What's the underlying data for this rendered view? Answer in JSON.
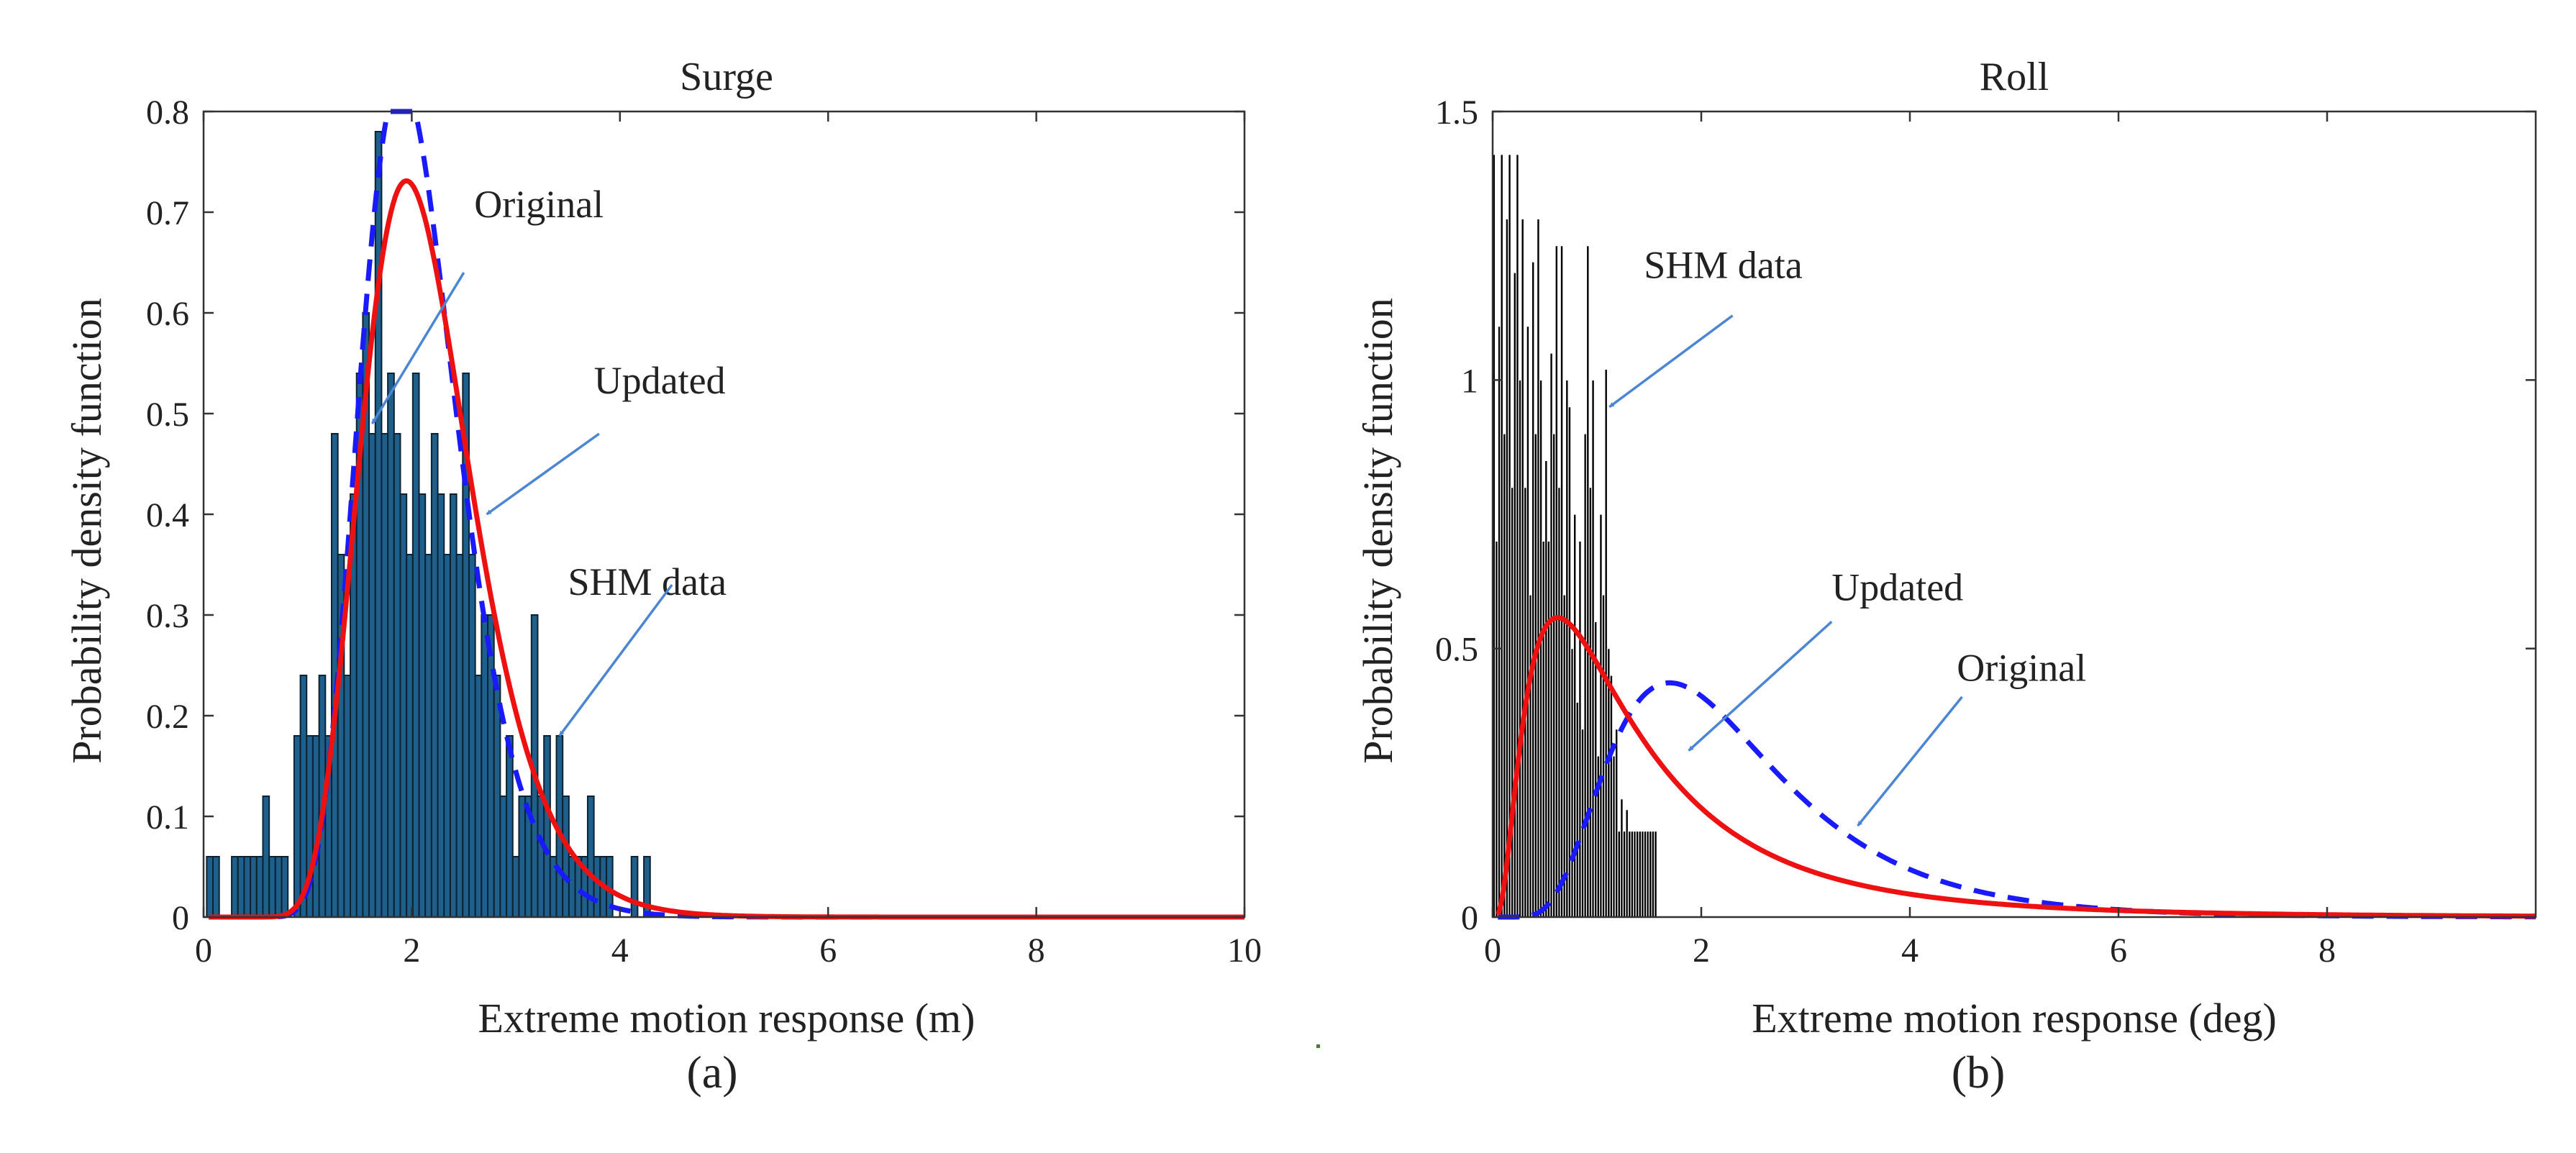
{
  "chart_data": [
    {
      "type": "histogram+line",
      "panel_label": "(a)",
      "title": "Surge",
      "xlabel": "Extreme motion response (m)",
      "ylabel": "Probability density function",
      "xlim": [
        0,
        10
      ],
      "ylim": [
        0,
        0.8
      ],
      "xticks": [
        0,
        2,
        4,
        6,
        8,
        10
      ],
      "yticks": [
        0,
        0.1,
        0.2,
        0.3,
        0.4,
        0.5,
        0.6,
        0.7,
        0.8
      ],
      "xtick_labels": [
        "0",
        "2",
        "4",
        "6",
        "8",
        "10"
      ],
      "ytick_labels": [
        "0",
        "0.1",
        "0.2",
        "0.3",
        "0.4",
        "0.5",
        "0.6",
        "0.7",
        "0.8"
      ],
      "grid": false,
      "histogram": {
        "name": "SHM data",
        "color": "#1f5f8b",
        "bin_width": 0.06,
        "bin_starts": [
          0.03,
          0.09,
          0.15,
          0.21,
          0.27,
          0.33,
          0.39,
          0.45,
          0.51,
          0.57,
          0.63,
          0.69,
          0.75,
          0.81,
          0.87,
          0.93,
          0.99,
          1.05,
          1.11,
          1.17,
          1.23,
          1.29,
          1.35,
          1.41,
          1.47,
          1.53,
          1.59,
          1.65,
          1.71,
          1.77,
          1.83,
          1.89,
          1.95,
          2.01,
          2.07,
          2.13,
          2.19,
          2.25,
          2.31,
          2.37,
          2.43,
          2.49,
          2.55,
          2.61,
          2.67,
          2.73,
          2.79,
          2.85,
          2.91,
          2.97,
          3.03,
          3.09,
          3.15,
          3.21,
          3.27,
          3.33,
          3.39,
          3.45,
          3.51,
          3.57,
          3.63,
          3.69,
          3.75,
          3.81,
          3.87,
          3.93,
          3.99,
          4.05,
          4.11,
          4.17,
          4.23
        ],
        "values": [
          0.06,
          0.06,
          0.0,
          0.0,
          0.06,
          0.06,
          0.06,
          0.06,
          0.06,
          0.12,
          0.06,
          0.06,
          0.06,
          0.0,
          0.18,
          0.24,
          0.18,
          0.18,
          0.24,
          0.18,
          0.48,
          0.36,
          0.24,
          0.42,
          0.54,
          0.6,
          0.48,
          0.78,
          0.48,
          0.54,
          0.48,
          0.42,
          0.36,
          0.54,
          0.42,
          0.36,
          0.48,
          0.42,
          0.36,
          0.42,
          0.36,
          0.54,
          0.36,
          0.24,
          0.3,
          0.3,
          0.24,
          0.12,
          0.18,
          0.06,
          0.12,
          0.12,
          0.3,
          0.12,
          0.18,
          0.06,
          0.18,
          0.12,
          0.06,
          0.06,
          0.06,
          0.12,
          0.06,
          0.06,
          0.06,
          0.0,
          0.0,
          0.0,
          0.06,
          0.0,
          0.06
        ]
      },
      "series": [
        {
          "name": "Original",
          "style": "dashed",
          "color": "#1a1aff",
          "shape": "lognormal",
          "mu": 0.7,
          "sigma": 0.245
        },
        {
          "name": "Updated",
          "style": "solid",
          "color": "#ee1111",
          "shape": "lognormal",
          "mu": 0.74,
          "sigma": 0.27
        }
      ],
      "annotations": [
        {
          "text": "Original",
          "text_x": 2.6,
          "text_y": 0.695,
          "arrow_from": [
            2.5,
            0.64
          ],
          "arrow_to": [
            1.62,
            0.49
          ]
        },
        {
          "text": "Updated",
          "text_x": 3.75,
          "text_y": 0.52,
          "arrow_from": [
            3.8,
            0.48
          ],
          "arrow_to": [
            2.72,
            0.4
          ]
        },
        {
          "text": "SHM data",
          "text_x": 3.5,
          "text_y": 0.32,
          "arrow_from": [
            4.5,
            0.33
          ],
          "arrow_to": [
            3.42,
            0.18
          ]
        }
      ]
    },
    {
      "type": "histogram+line",
      "panel_label": "(b)",
      "title": "Roll",
      "xlabel": "Extreme motion response (deg)",
      "ylabel": "Probability density function",
      "xlim": [
        0,
        10
      ],
      "ylim": [
        0,
        1.5
      ],
      "xticks": [
        0,
        2,
        4,
        6,
        8
      ],
      "yticks": [
        0,
        0.5,
        1,
        1.5
      ],
      "xtick_labels": [
        "0",
        "2",
        "4",
        "6",
        "8"
      ],
      "ytick_labels": [
        "0",
        "0.5",
        "1",
        "1.5"
      ],
      "grid": false,
      "histogram": {
        "name": "SHM data",
        "color": "#000000",
        "bin_width": 0.025,
        "bin_starts": [
          0.0,
          0.025,
          0.05,
          0.075,
          0.1,
          0.125,
          0.15,
          0.175,
          0.2,
          0.225,
          0.25,
          0.275,
          0.3,
          0.325,
          0.35,
          0.375,
          0.4,
          0.425,
          0.45,
          0.475,
          0.5,
          0.525,
          0.55,
          0.575,
          0.6,
          0.625,
          0.65,
          0.675,
          0.7,
          0.725,
          0.75,
          0.775,
          0.8,
          0.825,
          0.85,
          0.875,
          0.9,
          0.925,
          0.95,
          0.975,
          1.0,
          1.025,
          1.05,
          1.075,
          1.1,
          1.125,
          1.15,
          1.175,
          1.2,
          1.225,
          1.25,
          1.275,
          1.3,
          1.325,
          1.35,
          1.375,
          1.4,
          1.425,
          1.45,
          1.475,
          1.5,
          1.525,
          1.55
        ],
        "values": [
          1.42,
          0.7,
          1.1,
          1.42,
          0.9,
          1.3,
          1.42,
          0.8,
          1.2,
          1.42,
          1.0,
          1.3,
          0.8,
          1.1,
          0.6,
          1.22,
          0.9,
          1.3,
          1.0,
          0.7,
          0.85,
          0.7,
          1.05,
          0.9,
          1.25,
          0.8,
          1.25,
          0.6,
          1.0,
          0.95,
          0.5,
          0.75,
          0.4,
          0.7,
          0.35,
          0.9,
          1.25,
          0.8,
          1.0,
          0.55,
          0.3,
          0.75,
          0.6,
          1.02,
          0.5,
          0.45,
          0.3,
          0.35,
          0.16,
          0.22,
          0.16,
          0.2,
          0.16,
          0.16,
          0.16,
          0.16,
          0.16,
          0.16,
          0.16,
          0.16,
          0.16,
          0.16,
          0.16
        ]
      },
      "series": [
        {
          "name": "Original",
          "style": "dashed",
          "color": "#1a1aff",
          "shape": "lognormal",
          "mu": 0.76,
          "sigma": 0.48
        },
        {
          "name": "Updated",
          "style": "solid",
          "color": "#ee1111",
          "shape": "lognormal",
          "mu": 0.2,
          "sigma": 0.82
        }
      ],
      "annotations": [
        {
          "text": "SHM data",
          "text_x": 1.45,
          "text_y": 1.19,
          "arrow_from": [
            2.3,
            1.12
          ],
          "arrow_to": [
            1.12,
            0.95
          ]
        },
        {
          "text": "Updated",
          "text_x": 3.25,
          "text_y": 0.59,
          "arrow_from": [
            3.25,
            0.55
          ],
          "arrow_to": [
            1.88,
            0.31
          ]
        },
        {
          "text": "Original",
          "text_x": 4.45,
          "text_y": 0.44,
          "arrow_from": [
            4.5,
            0.41
          ],
          "arrow_to": [
            3.5,
            0.17
          ]
        }
      ]
    }
  ]
}
